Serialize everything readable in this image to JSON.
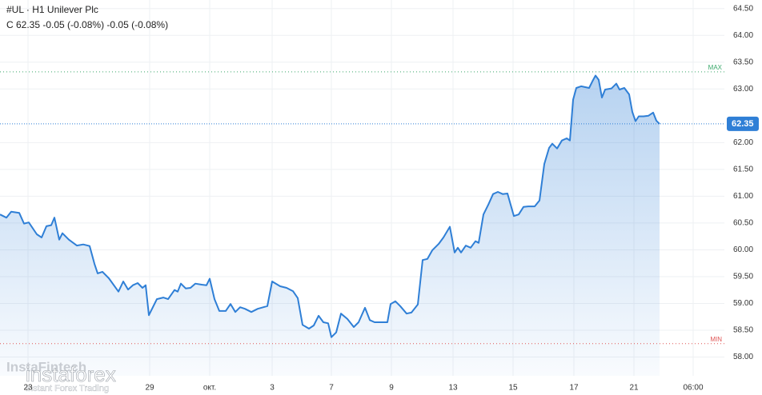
{
  "chart_data": {
    "type": "area",
    "symbol": "#UL · H1 Unilever Plc",
    "quote": "C 62.35 -0.05 (-0.08%) -0.05 (-0.08%)",
    "watermark": "instaforex",
    "watermark_sub": "Instant Forex Trading",
    "watermark_back": "InstaFintech",
    "color": "#2f7fd6",
    "x": [
      0,
      8,
      14,
      24,
      30,
      36,
      46,
      52,
      58,
      64,
      68,
      74,
      78,
      86,
      96,
      104,
      112,
      118,
      122,
      128,
      136,
      148,
      154,
      160,
      166,
      172,
      178,
      182,
      186,
      196,
      204,
      210,
      218,
      222,
      226,
      232,
      238,
      244,
      252,
      258,
      262,
      268,
      274,
      282,
      288,
      294,
      300,
      306,
      314,
      322,
      334,
      340,
      350,
      358,
      366,
      372,
      378,
      386,
      392,
      398,
      404,
      410,
      414,
      420,
      426,
      434,
      442,
      448,
      456,
      462,
      468,
      476,
      484,
      488,
      494,
      500,
      508,
      514,
      522,
      528,
      534,
      540,
      548,
      554,
      562,
      568,
      572,
      576,
      582,
      588,
      594,
      598,
      604,
      610,
      616,
      622,
      628,
      634,
      642,
      648,
      654,
      660,
      668,
      674,
      680,
      686,
      690,
      696,
      702,
      708,
      712,
      716,
      720,
      726,
      736,
      740,
      744,
      748,
      752,
      756,
      764,
      770,
      774,
      780,
      786,
      790,
      794,
      798,
      804,
      810,
      816,
      820,
      824
    ],
    "values": [
      60.66,
      60.6,
      60.71,
      60.69,
      60.49,
      60.51,
      60.29,
      60.23,
      60.44,
      60.46,
      60.6,
      60.19,
      60.31,
      60.19,
      60.08,
      60.1,
      60.07,
      59.74,
      59.56,
      59.59,
      59.47,
      59.22,
      59.41,
      59.26,
      59.34,
      59.38,
      59.29,
      59.34,
      58.78,
      59.08,
      59.11,
      59.08,
      59.25,
      59.22,
      59.37,
      59.28,
      59.29,
      59.37,
      59.35,
      59.34,
      59.46,
      59.08,
      58.86,
      58.86,
      58.99,
      58.84,
      58.93,
      58.9,
      58.84,
      58.9,
      58.95,
      59.41,
      59.32,
      59.29,
      59.23,
      59.1,
      58.6,
      58.53,
      58.59,
      58.77,
      58.65,
      58.63,
      58.37,
      58.46,
      58.81,
      58.71,
      58.56,
      58.65,
      58.92,
      58.69,
      58.65,
      58.65,
      58.65,
      58.99,
      59.04,
      58.95,
      58.81,
      58.83,
      58.98,
      59.81,
      59.83,
      59.99,
      60.11,
      60.23,
      60.43,
      59.95,
      60.04,
      59.95,
      60.08,
      60.04,
      60.16,
      60.13,
      60.66,
      60.84,
      61.04,
      61.08,
      61.04,
      61.05,
      60.63,
      60.66,
      60.8,
      60.81,
      60.81,
      60.92,
      61.6,
      61.9,
      61.98,
      61.89,
      62.04,
      62.08,
      62.04,
      62.8,
      63.02,
      63.05,
      63.02,
      63.14,
      63.25,
      63.17,
      62.84,
      62.99,
      63.01,
      63.1,
      62.99,
      63.02,
      62.9,
      62.57,
      62.4,
      62.49,
      62.49,
      62.5,
      62.56,
      62.41,
      62.35
    ],
    "current": 62.35,
    "max": {
      "label": "MAX",
      "value": 63.32
    },
    "min": {
      "label": "MIN",
      "value": 58.25
    },
    "xlim": [
      0,
      905
    ],
    "xticks": [
      {
        "value": 35,
        "label": "23"
      },
      {
        "value": 187,
        "label": "29"
      },
      {
        "value": 262,
        "label": "окт."
      },
      {
        "value": 340,
        "label": "3"
      },
      {
        "value": 414,
        "label": "7"
      },
      {
        "value": 489,
        "label": "9"
      },
      {
        "value": 566,
        "label": "13"
      },
      {
        "value": 641,
        "label": "15"
      },
      {
        "value": 717,
        "label": "17"
      },
      {
        "value": 792,
        "label": "21"
      },
      {
        "value": 866,
        "label": "06:00"
      }
    ],
    "ylim": [
      57.65,
      64.66
    ],
    "yticks": [
      {
        "value": 58,
        "label": "58.00"
      },
      {
        "value": 58.5,
        "label": "58.50"
      },
      {
        "value": 59,
        "label": "59.00"
      },
      {
        "value": 59.5,
        "label": "59.50"
      },
      {
        "value": 60,
        "label": "60.00"
      },
      {
        "value": 60.5,
        "label": "60.50"
      },
      {
        "value": 61,
        "label": "61.00"
      },
      {
        "value": 61.5,
        "label": "61.50"
      },
      {
        "value": 62,
        "label": "62.00"
      },
      {
        "value": 63,
        "label": "63.00"
      },
      {
        "value": 63.5,
        "label": "63.50"
      },
      {
        "value": 64,
        "label": "64.00"
      },
      {
        "value": 64.5,
        "label": "64.50"
      }
    ],
    "grid": true
  }
}
